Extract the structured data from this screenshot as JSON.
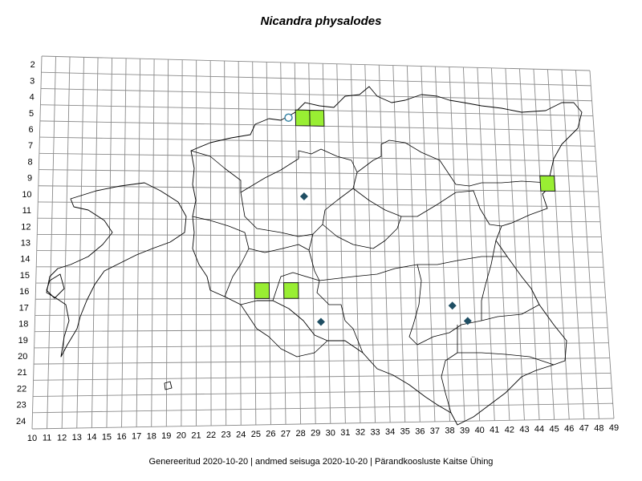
{
  "title": "Nicandra physalodes",
  "footer": "Genereeritud 2020-10-20  |  andmed seisuga 2020-10-20  |  Pärandkoosluste Kaitse Ühing",
  "x_labels": [
    "10",
    "11",
    "12",
    "13",
    "14",
    "15",
    "16",
    "17",
    "18",
    "19",
    "20",
    "21",
    "22",
    "23",
    "24",
    "25",
    "26",
    "27",
    "28",
    "29",
    "30",
    "31",
    "32",
    "33",
    "34",
    "35",
    "36",
    "37",
    "38",
    "39",
    "40",
    "41",
    "42",
    "43",
    "44",
    "45",
    "46",
    "47",
    "48",
    "49"
  ],
  "y_labels": [
    "2",
    "3",
    "4",
    "5",
    "6",
    "7",
    "8",
    "9",
    "10",
    "11",
    "12",
    "13",
    "14",
    "15",
    "16",
    "17",
    "18",
    "19",
    "20",
    "21",
    "22",
    "23",
    "24"
  ],
  "colors": {
    "square_fill": "#99ee33",
    "square_stroke": "#1a1a1a",
    "diamond": "#1f4e63",
    "circle": "#3a86a6",
    "grid": "#8a8a8a"
  },
  "legend_markers": {
    "squares": [
      [
        28,
        5
      ],
      [
        29,
        5
      ],
      [
        45,
        9
      ],
      [
        25,
        16
      ],
      [
        27,
        16
      ]
    ],
    "diamonds": [
      [
        28,
        10
      ],
      [
        29,
        18
      ],
      [
        39,
        18
      ],
      [
        38,
        17
      ]
    ],
    "circles": [
      [
        27,
        5
      ]
    ]
  }
}
